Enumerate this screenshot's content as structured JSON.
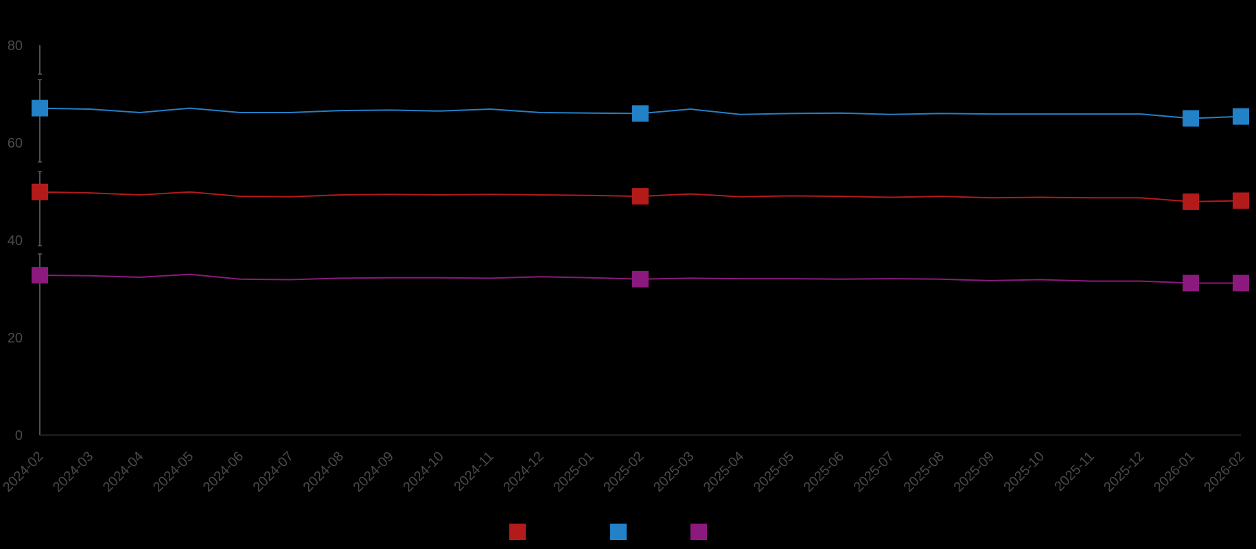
{
  "chart_data": {
    "type": "line",
    "title": "",
    "xlabel": "",
    "ylabel": "",
    "x": [
      "2024-02",
      "2024-03",
      "2024-04",
      "2024-05",
      "2024-06",
      "2024-07",
      "2024-08",
      "2024-09",
      "2024-10",
      "2024-11",
      "2024-12",
      "2025-01",
      "2025-02",
      "2025-03",
      "2025-04",
      "2025-05",
      "2025-06",
      "2025-07",
      "2025-08",
      "2025-09",
      "2025-10",
      "2025-11",
      "2025-12",
      "2026-01",
      "2026-02"
    ],
    "ylim": [
      0,
      80
    ],
    "yticks": [
      0,
      20,
      40,
      60,
      80
    ],
    "grid": false,
    "legend": "bottom-center",
    "series": [
      {
        "color": "#b31b1b",
        "marker": "square",
        "marker_indices": [
          0,
          12,
          23,
          24
        ],
        "values": [
          49.9,
          49.7,
          49.3,
          49.9,
          49.0,
          48.9,
          49.3,
          49.4,
          49.3,
          49.4,
          49.3,
          49.2,
          49.0,
          49.5,
          48.9,
          49.1,
          49.0,
          48.8,
          49.0,
          48.7,
          48.8,
          48.7,
          48.7,
          47.9,
          48.1
        ]
      },
      {
        "color": "#2381c8",
        "marker": "square",
        "marker_indices": [
          0,
          12,
          23,
          24
        ],
        "values": [
          67.1,
          66.9,
          66.2,
          67.1,
          66.2,
          66.2,
          66.6,
          66.7,
          66.5,
          66.9,
          66.2,
          66.1,
          66.0,
          66.9,
          65.8,
          66.0,
          66.1,
          65.8,
          66.0,
          65.9,
          65.9,
          65.9,
          65.9,
          65.0,
          65.4
        ]
      },
      {
        "color": "#8c1a7e",
        "marker": "square",
        "marker_indices": [
          0,
          12,
          23,
          24
        ],
        "values": [
          32.8,
          32.7,
          32.4,
          33.0,
          32.0,
          31.9,
          32.2,
          32.3,
          32.3,
          32.2,
          32.5,
          32.3,
          32.0,
          32.2,
          32.1,
          32.1,
          32.0,
          32.1,
          32.0,
          31.7,
          31.9,
          31.6,
          31.6,
          31.2,
          31.2
        ]
      }
    ]
  }
}
